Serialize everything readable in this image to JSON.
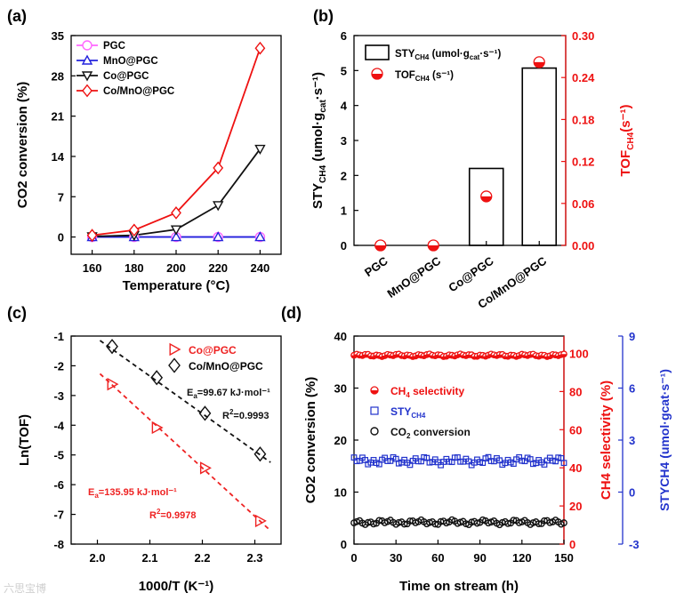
{
  "panels": {
    "a": {
      "label": "(a)",
      "chart_data": {
        "type": "line",
        "xlabel": "Temperature (°C)",
        "ylabel": "CO2 conversion (%)",
        "x": [
          160,
          180,
          200,
          220,
          240
        ],
        "xlim": [
          150,
          250
        ],
        "ylim": [
          -3,
          35
        ],
        "xticks": [
          160,
          180,
          200,
          220,
          240
        ],
        "yticks": [
          0,
          7,
          14,
          21,
          28,
          35
        ],
        "legend_position": "top-left",
        "series": [
          {
            "name": "PGC",
            "color": "#ff66ff",
            "marker": "circle",
            "values": [
              0,
              0,
              0,
              0,
              0
            ]
          },
          {
            "name": "MnO@PGC",
            "color": "#2222dd",
            "marker": "triangle-up",
            "values": [
              0,
              0,
              0,
              0,
              0
            ]
          },
          {
            "name": "Co@PGC",
            "color": "#111111",
            "marker": "triangle-down",
            "values": [
              0.1,
              0.3,
              1.3,
              5.5,
              15.3
            ]
          },
          {
            "name": "Co/MnO@PGC",
            "color": "#ee1111",
            "marker": "diamond",
            "values": [
              0.3,
              1.2,
              4.2,
              12.0,
              32.8
            ]
          }
        ]
      }
    },
    "b": {
      "label": "(b)",
      "chart_data": {
        "type": "bar",
        "categories": [
          "PGC",
          "MnO@PGC",
          "Co@PGC",
          "Co/MnO@PGC"
        ],
        "ylabel_left": "STY",
        "ylabel_left_sub": "CH4",
        "ylabel_left_tail": " (umol·g",
        "ylabel_left_sub2": "cat",
        "ylabel_left_end": "·s⁻¹)",
        "ylabel_right": "TOF",
        "ylabel_right_sub": "CH4",
        "ylabel_right_end": "(s⁻¹)",
        "ylim_left": [
          0,
          6
        ],
        "ylim_right": [
          0,
          0.3
        ],
        "yticks_left": [
          "0",
          "1",
          "2",
          "3",
          "4",
          "5",
          "6"
        ],
        "yticks_right": [
          "0.00",
          "0.06",
          "0.12",
          "0.18",
          "0.24",
          "0.30"
        ],
        "legend_position": "top-left",
        "series": [
          {
            "name": "STYCH4 (umol·gcat·s⁻¹)",
            "legend_main": "STY",
            "legend_sub": "CH4",
            "legend_tail": " (umol·g",
            "legend_sub2": "cat",
            "legend_end": "·s⁻¹)",
            "axis": "left",
            "type": "bar",
            "values": [
              0,
              0,
              2.2,
              5.07
            ]
          },
          {
            "name": "TOFCH4 (s⁻¹)",
            "legend_main": "TOF",
            "legend_sub": "CH4",
            "legend_end": " (s⁻¹)",
            "axis": "right",
            "type": "scatter",
            "color": "#ee1111",
            "values": [
              0.0,
              0.0,
              0.07,
              0.262
            ]
          }
        ]
      }
    },
    "c": {
      "label": "(c)",
      "chart_data": {
        "type": "scatter",
        "xlabel": "1000/T (K⁻¹)",
        "ylabel": "Ln(TOF)",
        "xlim": [
          1.95,
          2.35
        ],
        "ylim": [
          -8,
          -1
        ],
        "xticks": [
          "2.0",
          "2.1",
          "2.2",
          "2.3"
        ],
        "yticks": [
          "-1",
          "-2",
          "-3",
          "-4",
          "-5",
          "-6",
          "-7",
          "-8"
        ],
        "legend_position": "top-right",
        "series": [
          {
            "name": "Co@PGC",
            "color": "#ee2222",
            "marker": "triangle-right",
            "x": [
              2.028,
              2.113,
              2.205,
              2.31
            ],
            "y": [
              -2.62,
              -4.08,
              -5.44,
              -7.22
            ],
            "fit": [
              [
                2.005,
                -2.27
              ],
              [
                2.33,
                -7.55
              ]
            ],
            "annotation": "Ea=135.95 kJ·mol⁻¹",
            "ea_value": "=135.95 kJ·mol⁻¹",
            "r2": "R²=0.9978",
            "r2_value": "=0.9978"
          },
          {
            "name": "Co/MnO@PGC",
            "color": "#111111",
            "marker": "diamond",
            "x": [
              2.028,
              2.113,
              2.205,
              2.31
            ],
            "y": [
              -1.35,
              -2.4,
              -3.6,
              -4.97
            ],
            "fit": [
              [
                2.005,
                -1.15
              ],
              [
                2.33,
                -5.25
              ]
            ],
            "annotation": "Ea=99.67 kJ·mol⁻¹",
            "ea_value": "=99.67 kJ·mol⁻¹",
            "r2": "R²=0.9993",
            "r2_value": "=0.9993"
          }
        ]
      }
    },
    "d": {
      "label": "(d)",
      "chart_data": {
        "type": "scatter",
        "xlabel": "Time on stream (h)",
        "ylabel_left": "CO2 conversion (%)",
        "ylabel_mid": "CH4 selectivity (%)",
        "ylabel_right": "STYCH4 (umol·gcat·s⁻¹)",
        "xlim": [
          0,
          150
        ],
        "xticks": [
          0,
          30,
          60,
          90,
          120,
          150
        ],
        "ylim_left": [
          0,
          40
        ],
        "yticks_left": [
          0,
          10,
          20,
          30,
          40
        ],
        "ylim_mid": [
          0,
          109.09
        ],
        "yticks_mid": [
          0,
          20,
          40,
          60,
          80,
          100
        ],
        "ylim_right": [
          -3,
          9
        ],
        "yticks_right": [
          -3,
          0,
          3,
          6,
          9
        ],
        "legend_position": "middle-left",
        "series": [
          {
            "name": "CH4 selectivity",
            "axis": "mid",
            "color": "#ee1111",
            "marker": "half-circle",
            "mean": 99.0,
            "jitter": 0.7
          },
          {
            "name": "STYCH4",
            "axis": "right",
            "color": "#2233cc",
            "marker": "square",
            "mean": 1.8,
            "jitter": 0.25
          },
          {
            "name": "CO2 conversion",
            "axis": "left",
            "color": "#111111",
            "marker": "circle",
            "mean": 4.2,
            "jitter": 0.5
          }
        ]
      }
    }
  },
  "watermark": "六思宝博"
}
